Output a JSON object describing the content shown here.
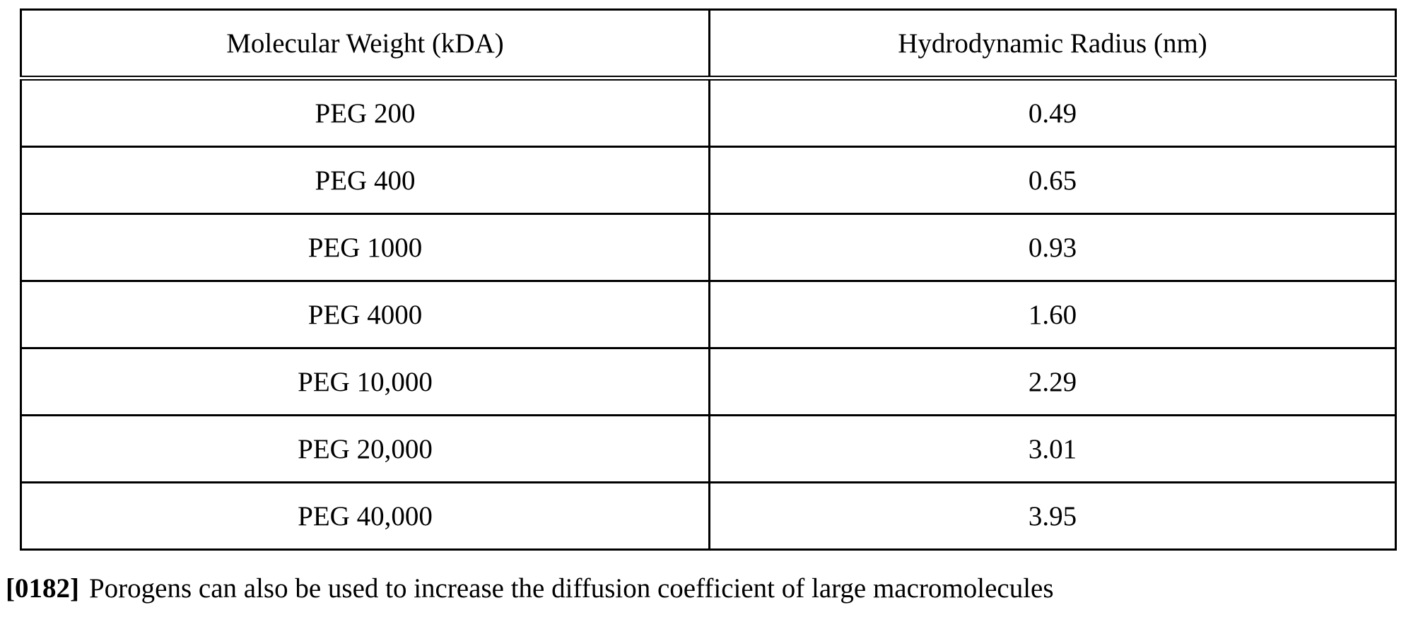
{
  "table": {
    "header": [
      "Molecular Weight (kDA)",
      "Hydrodynamic Radius (nm)"
    ],
    "rows": [
      [
        "PEG 200",
        "0.49"
      ],
      [
        "PEG 400",
        "0.65"
      ],
      [
        "PEG 1000",
        "0.93"
      ],
      [
        "PEG 4000",
        "1.60"
      ],
      [
        "PEG 10,000",
        "2.29"
      ],
      [
        "PEG 20,000",
        "3.01"
      ],
      [
        "PEG 40,000",
        "3.95"
      ]
    ]
  },
  "paragraph": {
    "number": "[0182]",
    "text": "Porogens can also be used to increase the diffusion coefficient of large macromolecules"
  }
}
